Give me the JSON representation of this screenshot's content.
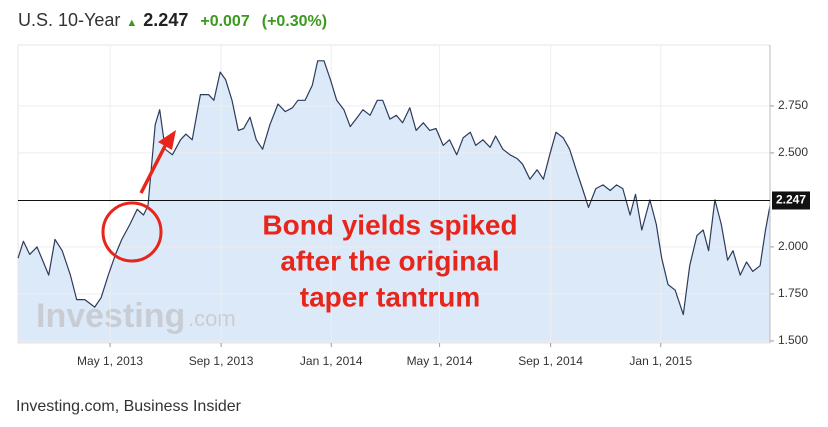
{
  "header": {
    "name": "U.S. 10-Year",
    "price": "2.247",
    "change": "+0.007",
    "change_pct": "(+0.30%)"
  },
  "chart_data": {
    "type": "area",
    "x": [
      "2013-01-19",
      "2013-01-25",
      "2013-02-01",
      "2013-02-09",
      "2013-02-16",
      "2013-02-22",
      "2013-03-01",
      "2013-03-09",
      "2013-03-18",
      "2013-03-25",
      "2013-04-03",
      "2013-04-14",
      "2013-04-21",
      "2013-04-29",
      "2013-05-07",
      "2013-05-14",
      "2013-05-23",
      "2013-05-31",
      "2013-06-07",
      "2013-06-12",
      "2013-06-20",
      "2013-06-25",
      "2013-07-01",
      "2013-07-09",
      "2013-07-18",
      "2013-07-24",
      "2013-07-31",
      "2013-08-09",
      "2013-08-18",
      "2013-08-24",
      "2013-08-31",
      "2013-09-06",
      "2013-09-13",
      "2013-09-20",
      "2013-09-26",
      "2013-10-03",
      "2013-10-10",
      "2013-10-17",
      "2013-10-25",
      "2013-11-03",
      "2013-11-11",
      "2013-11-19",
      "2013-11-25",
      "2013-12-03",
      "2013-12-11",
      "2013-12-17",
      "2013-12-24",
      "2013-12-31",
      "2014-01-07",
      "2014-01-15",
      "2014-01-22",
      "2014-01-30",
      "2014-02-05",
      "2014-02-13",
      "2014-02-21",
      "2014-02-27",
      "2014-03-07",
      "2014-03-14",
      "2014-03-21",
      "2014-03-29",
      "2014-04-05",
      "2014-04-13",
      "2014-04-20",
      "2014-04-27",
      "2014-05-05",
      "2014-05-12",
      "2014-05-20",
      "2014-05-27",
      "2014-06-04",
      "2014-06-10",
      "2014-06-18",
      "2014-06-26",
      "2014-07-02",
      "2014-07-10",
      "2014-07-18",
      "2014-07-26",
      "2014-08-01",
      "2014-08-09",
      "2014-08-17",
      "2014-08-24",
      "2014-08-31",
      "2014-09-07",
      "2014-09-15",
      "2014-09-22",
      "2014-09-30",
      "2014-10-07",
      "2014-10-13",
      "2014-10-21",
      "2014-10-29",
      "2014-11-06",
      "2014-11-13",
      "2014-11-20",
      "2014-11-28",
      "2014-12-04",
      "2014-12-11",
      "2014-12-20",
      "2014-12-27",
      "2015-01-02",
      "2015-01-09",
      "2015-01-17",
      "2015-01-26",
      "2015-02-02",
      "2015-02-10",
      "2015-02-17",
      "2015-02-23",
      "2015-03-02",
      "2015-03-09",
      "2015-03-16",
      "2015-03-22",
      "2015-03-30",
      "2015-04-06",
      "2015-04-13",
      "2015-04-21",
      "2015-04-27",
      "2015-05-02"
    ],
    "series": [
      {
        "color": "#2d3b5c",
        "values": [
          1.94,
          2.03,
          1.96,
          2.0,
          1.92,
          1.85,
          2.04,
          1.98,
          1.85,
          1.72,
          1.72,
          1.68,
          1.73,
          1.85,
          1.96,
          2.04,
          2.12,
          2.2,
          2.17,
          2.22,
          2.65,
          2.73,
          2.52,
          2.49,
          2.57,
          2.6,
          2.57,
          2.81,
          2.81,
          2.78,
          2.93,
          2.89,
          2.78,
          2.62,
          2.63,
          2.69,
          2.57,
          2.52,
          2.65,
          2.76,
          2.72,
          2.74,
          2.78,
          2.78,
          2.86,
          2.99,
          2.99,
          2.89,
          2.78,
          2.73,
          2.64,
          2.69,
          2.73,
          2.7,
          2.78,
          2.78,
          2.68,
          2.7,
          2.66,
          2.74,
          2.62,
          2.66,
          2.62,
          2.63,
          2.54,
          2.57,
          2.49,
          2.58,
          2.61,
          2.54,
          2.57,
          2.53,
          2.59,
          2.52,
          2.49,
          2.47,
          2.44,
          2.36,
          2.41,
          2.36,
          2.49,
          2.61,
          2.58,
          2.52,
          2.4,
          2.3,
          2.21,
          2.31,
          2.33,
          2.3,
          2.33,
          2.31,
          2.17,
          2.28,
          2.09,
          2.25,
          2.12,
          1.94,
          1.8,
          1.77,
          1.64,
          1.9,
          2.06,
          2.09,
          1.98,
          2.25,
          2.12,
          1.93,
          1.98,
          1.85,
          1.92,
          1.87,
          1.9,
          2.09,
          2.22
        ]
      }
    ],
    "fill_color": "#dce9f8",
    "xlim": [
      "2013-01-19",
      "2015-05-02"
    ],
    "xticks": [
      {
        "value": "2013-05-01",
        "label": "May 1, 2013"
      },
      {
        "value": "2013-09-01",
        "label": "Sep 1, 2013"
      },
      {
        "value": "2014-01-01",
        "label": "Jan 1, 2014"
      },
      {
        "value": "2014-05-01",
        "label": "May 1, 2014"
      },
      {
        "value": "2014-09-01",
        "label": "Sep 1, 2014"
      },
      {
        "value": "2015-01-01",
        "label": "Jan 1, 2015"
      }
    ],
    "ylim": [
      1.489,
      3.074
    ],
    "yticks": [
      {
        "value": 1.5,
        "label": "1.500"
      },
      {
        "value": 1.75,
        "label": "1.750"
      },
      {
        "value": 2,
        "label": "2.000"
      },
      {
        "value": 2.5,
        "label": "2.500"
      },
      {
        "value": 2.75,
        "label": "2.750"
      }
    ],
    "current_value": 2.247,
    "grid": true,
    "annotation": [
      "Bond yields spiked",
      "after the original",
      "taper tantrum"
    ],
    "watermark": [
      "Investing",
      ".com"
    ]
  },
  "caption": "Investing.com, Business Insider"
}
